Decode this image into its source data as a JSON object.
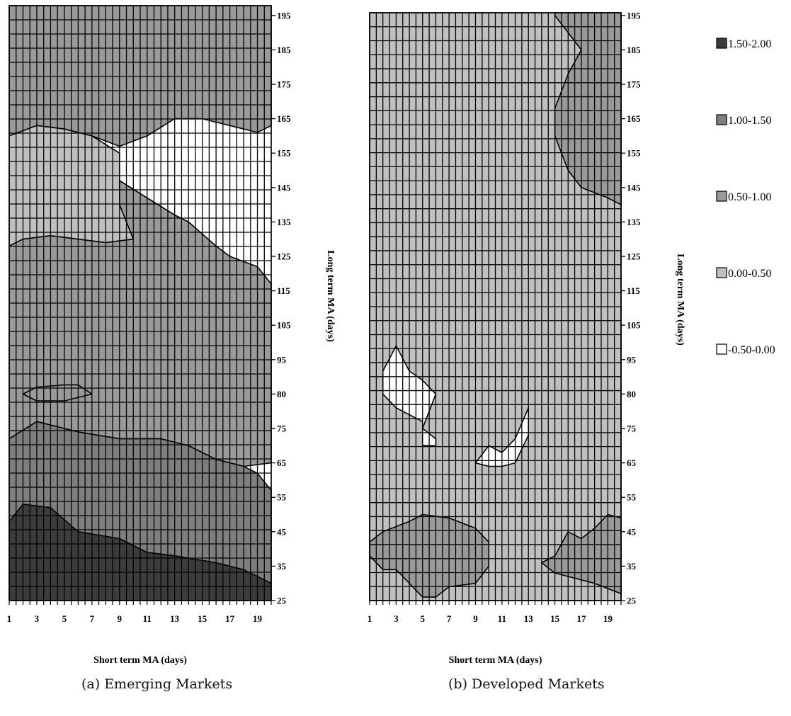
{
  "legend": [
    {
      "label": "1.50-2.00",
      "color": "#3c3c3c"
    },
    {
      "label": "1.00-1.50",
      "color": "#7f7f7f"
    },
    {
      "label": "0.50-1.00",
      "color": "#9a9a9a"
    },
    {
      "label": "0.00-0.50",
      "color": "#c0c0c0"
    },
    {
      "label": "-0.50-0.00",
      "color": "#ffffff"
    }
  ],
  "chart_data": [
    {
      "type": "heatmap",
      "caption": "(a) Emerging Markets",
      "xlabel": "Short term MA (days)",
      "ylabel": "Long term MA (days)",
      "x_ticks": [
        1,
        3,
        5,
        7,
        9,
        11,
        13,
        15,
        17,
        19
      ],
      "y_ticks": [
        25,
        35,
        45,
        55,
        65,
        75,
        80,
        95,
        105,
        115,
        125,
        135,
        145,
        155,
        165,
        175,
        185,
        195
      ],
      "xlim": [
        1,
        20
      ],
      "ylim": [
        25,
        200
      ],
      "grid": true,
      "regions": [
        {
          "range": "0.50-1.00",
          "boundary": [
            [
              1,
              200
            ],
            [
              20,
              200
            ],
            [
              20,
              163
            ],
            [
              19,
              161
            ],
            [
              17,
              163
            ],
            [
              15,
              165
            ],
            [
              13,
              165
            ],
            [
              11,
              160
            ],
            [
              9,
              157
            ],
            [
              7,
              160
            ],
            [
              5,
              162
            ],
            [
              3,
              163
            ],
            [
              1,
              160
            ]
          ]
        },
        {
          "range": "0.00-0.50",
          "boundary": [
            [
              1,
              160
            ],
            [
              3,
              163
            ],
            [
              5,
              162
            ],
            [
              7,
              160
            ],
            [
              9,
              155
            ],
            [
              9,
              147
            ],
            [
              11,
              142
            ],
            [
              13,
              137
            ],
            [
              14,
              135
            ],
            [
              12,
              132
            ],
            [
              10,
              130
            ],
            [
              8,
              129
            ],
            [
              6,
              130
            ],
            [
              4,
              131
            ],
            [
              2,
              130
            ],
            [
              1,
              128
            ]
          ]
        },
        {
          "range": "0.50-1.00",
          "boundary": [
            [
              9,
              147
            ],
            [
              11,
              142
            ],
            [
              13,
              137
            ],
            [
              14,
              135
            ],
            [
              16,
              128
            ],
            [
              17,
              125
            ],
            [
              19,
              122
            ],
            [
              20,
              117
            ],
            [
              20,
              65
            ],
            [
              18,
              64
            ],
            [
              16,
              66
            ],
            [
              14,
              70
            ],
            [
              12,
              72
            ],
            [
              9,
              72
            ],
            [
              6,
              74
            ],
            [
              3,
              76
            ],
            [
              1,
              72
            ],
            [
              1,
              128
            ],
            [
              2,
              130
            ],
            [
              4,
              131
            ],
            [
              6,
              130
            ],
            [
              8,
              129
            ],
            [
              10,
              130
            ],
            [
              9,
              140
            ]
          ]
        },
        {
          "range": "1.00-1.50",
          "boundary": [
            [
              1,
              72
            ],
            [
              3,
              76
            ],
            [
              6,
              74
            ],
            [
              9,
              72
            ],
            [
              12,
              72
            ],
            [
              14,
              70
            ],
            [
              16,
              66
            ],
            [
              18,
              64
            ],
            [
              19,
              62
            ],
            [
              20,
              57
            ],
            [
              20,
              30
            ],
            [
              18,
              32
            ],
            [
              16,
              35
            ],
            [
              13,
              38
            ],
            [
              11,
              39
            ],
            [
              9,
              43
            ],
            [
              6,
              44
            ],
            [
              4,
              50
            ],
            [
              3,
              51
            ],
            [
              1,
              48
            ]
          ]
        },
        {
          "range": "1.50-2.00",
          "boundary": [
            [
              1,
              48
            ],
            [
              2,
              53
            ],
            [
              4,
              52
            ],
            [
              6,
              45
            ],
            [
              9,
              43
            ],
            [
              11,
              39
            ],
            [
              13,
              38
            ],
            [
              16,
              36
            ],
            [
              18,
              34
            ],
            [
              20,
              30
            ],
            [
              20,
              25
            ],
            [
              1,
              25
            ]
          ]
        },
        {
          "range": "0.50-1.00",
          "boundary": [
            [
              2,
              80
            ],
            [
              3,
              83
            ],
            [
              5,
              84
            ],
            [
              6,
              84
            ],
            [
              7,
              80
            ],
            [
              5,
              79
            ],
            [
              3,
              79
            ]
          ]
        }
      ]
    },
    {
      "type": "heatmap",
      "caption": "(b) Developed Markets",
      "xlabel": "Short term MA (days)",
      "ylabel": "Long term MA (days)",
      "x_ticks": [
        1,
        3,
        5,
        7,
        9,
        11,
        13,
        15,
        17,
        19
      ],
      "y_ticks": [
        25,
        35,
        45,
        55,
        65,
        75,
        80,
        95,
        105,
        115,
        125,
        135,
        145,
        155,
        165,
        175,
        185,
        195
      ],
      "xlim": [
        1,
        20
      ],
      "ylim": [
        25,
        200
      ],
      "grid": true,
      "regions": [
        {
          "range": "0.00-0.50",
          "boundary": [
            [
              1,
              25
            ],
            [
              20,
              25
            ],
            [
              20,
              200
            ],
            [
              1,
              200
            ]
          ]
        },
        {
          "range": "0.50-1.00",
          "boundary": [
            [
              15,
              200
            ],
            [
              20,
              200
            ],
            [
              20,
              140
            ],
            [
              19,
              142
            ],
            [
              17,
              145
            ],
            [
              16,
              150
            ],
            [
              15,
              160
            ],
            [
              15,
              168
            ],
            [
              16,
              178
            ],
            [
              17,
              185
            ],
            [
              16,
              190
            ],
            [
              15,
              195
            ]
          ]
        },
        {
          "range": "0.50-1.00",
          "boundary": [
            [
              1,
              42
            ],
            [
              2,
              45
            ],
            [
              4,
              48
            ],
            [
              5,
              50
            ],
            [
              7,
              49
            ],
            [
              9,
              46
            ],
            [
              10,
              42
            ],
            [
              10,
              35
            ],
            [
              9,
              30
            ],
            [
              7,
              29
            ],
            [
              6,
              26
            ],
            [
              5,
              26
            ],
            [
              3,
              34
            ],
            [
              2,
              34
            ],
            [
              1,
              38
            ]
          ]
        },
        {
          "range": "0.50-1.00",
          "boundary": [
            [
              14,
              36
            ],
            [
              15,
              38
            ],
            [
              16,
              45
            ],
            [
              17,
              43
            ],
            [
              18,
              46
            ],
            [
              19,
              50
            ],
            [
              20,
              49
            ],
            [
              20,
              27
            ],
            [
              18,
              30
            ],
            [
              16,
              32
            ],
            [
              15,
              33
            ]
          ]
        },
        {
          "range": "-0.50-0.00",
          "boundary": [
            [
              2,
              90
            ],
            [
              3,
              99
            ],
            [
              4,
              90
            ],
            [
              5,
              86
            ],
            [
              6,
              80
            ],
            [
              5,
              75
            ],
            [
              6,
              72
            ],
            [
              6,
              70
            ],
            [
              5,
              70
            ],
            [
              5,
              76
            ],
            [
              3,
              78
            ],
            [
              2,
              80
            ]
          ]
        },
        {
          "range": "-0.50-0.00",
          "boundary": [
            [
              9,
              65
            ],
            [
              10,
              70
            ],
            [
              11,
              68
            ],
            [
              12,
              72
            ],
            [
              13,
              78
            ],
            [
              13,
              73
            ],
            [
              12,
              65
            ],
            [
              11,
              64
            ],
            [
              10,
              64
            ]
          ]
        }
      ]
    }
  ],
  "captions": {
    "a": "(a) Emerging Markets",
    "b": "(b) Developed Markets"
  }
}
